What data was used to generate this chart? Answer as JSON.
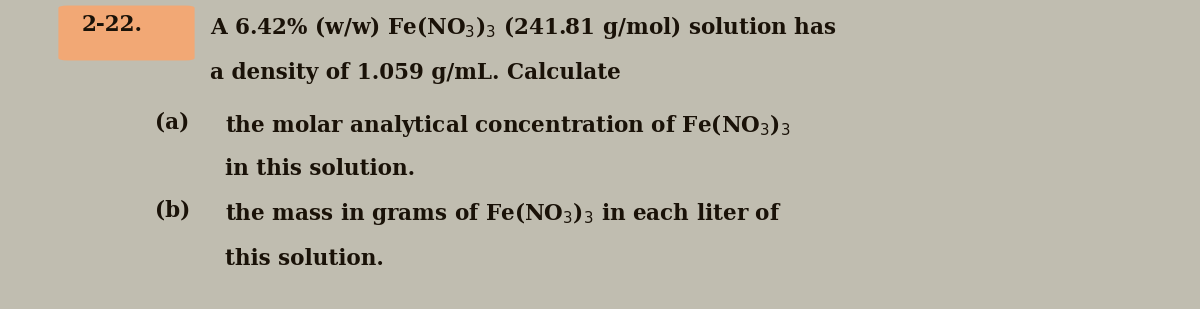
{
  "background_color": "#c0bdb0",
  "highlight_color": "#f2a875",
  "text_color": "#1a1208",
  "problem_number": "2-22.",
  "line1": "A 6.42% (w/w) Fe(NO$_3$)$_3$ (241.81 g/mol) solution has",
  "line2": "a density of 1.059 g/mL. Calculate",
  "part_a_label": "(a)",
  "part_a_line1": "the molar analytical concentration of Fe(NO$_3$)$_3$",
  "part_a_line2": "in this solution.",
  "part_b_label": "(b)",
  "part_b_line1": "the mass in grams of Fe(NO$_3$)$_3$ in each liter of",
  "part_b_line2": "this solution.",
  "font_size": 15.5
}
